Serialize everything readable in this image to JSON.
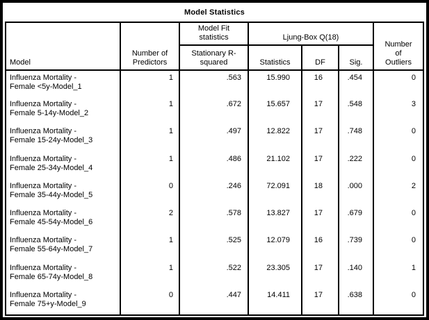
{
  "colors": {
    "frame": "#000000",
    "background": "#ffffff",
    "text": "#000000",
    "grid_border": "#000000"
  },
  "title": "Model Statistics",
  "headers": {
    "model": "Model",
    "predictors": "Number of\nPredictors",
    "model_fit_group": "Model Fit\nstatistics",
    "stationary_r_squared": "Stationary R-\nsquared",
    "ljung_box_group": "Ljung-Box Q(18)",
    "statistics": "Statistics",
    "df": "DF",
    "sig": "Sig.",
    "outliers": "Number\nof\nOutliers"
  },
  "chart_data": {
    "type": "table",
    "title": "Model Statistics",
    "columns": [
      "Model",
      "Number of Predictors",
      "Model Fit statistics: Stationary R-squared",
      "Ljung-Box Q(18): Statistics",
      "Ljung-Box Q(18): DF",
      "Ljung-Box Q(18): Sig.",
      "Number of Outliers"
    ],
    "rows": [
      {
        "model": "Influenza Mortality -\nFemale <5y-Model_1",
        "predictors": "1",
        "r_squared": ".563",
        "statistics": "15.990",
        "df": "16",
        "sig": ".454",
        "outliers": "0"
      },
      {
        "model": "Influenza Mortality -\nFemale 5-14y-Model_2",
        "predictors": "1",
        "r_squared": ".672",
        "statistics": "15.657",
        "df": "17",
        "sig": ".548",
        "outliers": "3"
      },
      {
        "model": "Influenza Mortality -\nFemale 15-24y-Model_3",
        "predictors": "1",
        "r_squared": ".497",
        "statistics": "12.822",
        "df": "17",
        "sig": ".748",
        "outliers": "0"
      },
      {
        "model": "Influenza Mortality -\nFemale 25-34y-Model_4",
        "predictors": "1",
        "r_squared": ".486",
        "statistics": "21.102",
        "df": "17",
        "sig": ".222",
        "outliers": "0"
      },
      {
        "model": "Influenza Mortality -\nFemale 35-44y-Model_5",
        "predictors": "0",
        "r_squared": ".246",
        "statistics": "72.091",
        "df": "18",
        "sig": ".000",
        "outliers": "2"
      },
      {
        "model": "Influenza Mortality -\nFemale 45-54y-Model_6",
        "predictors": "2",
        "r_squared": ".578",
        "statistics": "13.827",
        "df": "17",
        "sig": ".679",
        "outliers": "0"
      },
      {
        "model": "Influenza Mortality -\nFemale 55-64y-Model_7",
        "predictors": "1",
        "r_squared": ".525",
        "statistics": "12.079",
        "df": "16",
        "sig": ".739",
        "outliers": "0"
      },
      {
        "model": "Influenza Mortality -\nFemale 65-74y-Model_8",
        "predictors": "1",
        "r_squared": ".522",
        "statistics": "23.305",
        "df": "17",
        "sig": ".140",
        "outliers": "1"
      },
      {
        "model": "Influenza Mortality -\nFemale 75+y-Model_9",
        "predictors": "0",
        "r_squared": ".447",
        "statistics": "14.411",
        "df": "17",
        "sig": ".638",
        "outliers": "0"
      }
    ]
  }
}
